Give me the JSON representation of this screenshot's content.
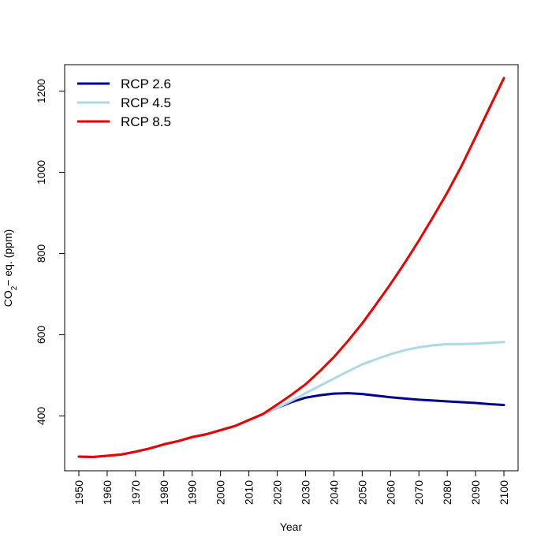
{
  "chart_data": {
    "type": "line",
    "title": "",
    "xlabel": "Year",
    "ylabel": {
      "prefix": "CO",
      "subscript": "2",
      "suffix": "− eq. (ppm)"
    },
    "xlim": [
      1945,
      2105
    ],
    "ylim": [
      265,
      1265
    ],
    "x_ticks": [
      1950,
      1960,
      1970,
      1980,
      1990,
      2000,
      2010,
      2020,
      2030,
      2040,
      2050,
      2060,
      2070,
      2080,
      2090,
      2100
    ],
    "y_ticks": [
      400,
      600,
      800,
      1000,
      1200
    ],
    "grid": false,
    "legend_position": "top-left",
    "series": [
      {
        "name": "RCP 2.6",
        "color": "#00008B",
        "x": [
          1950,
          1955,
          1960,
          1965,
          1970,
          1975,
          1980,
          1985,
          1990,
          1995,
          2000,
          2005,
          2010,
          2015,
          2020,
          2025,
          2030,
          2035,
          2040,
          2045,
          2050,
          2055,
          2060,
          2065,
          2070,
          2075,
          2080,
          2085,
          2090,
          2095,
          2100
        ],
        "values": [
          300,
          299,
          302,
          305,
          312,
          320,
          330,
          338,
          348,
          355,
          365,
          375,
          390,
          404,
          420,
          434,
          445,
          451,
          455,
          456,
          454,
          450,
          446,
          443,
          440,
          438,
          436,
          434,
          432,
          429,
          427
        ]
      },
      {
        "name": "RCP 4.5",
        "color": "#ADD8E6",
        "x": [
          1950,
          1955,
          1960,
          1965,
          1970,
          1975,
          1980,
          1985,
          1990,
          1995,
          2000,
          2005,
          2010,
          2015,
          2020,
          2025,
          2030,
          2035,
          2040,
          2045,
          2050,
          2055,
          2060,
          2065,
          2070,
          2075,
          2080,
          2085,
          2090,
          2095,
          2100
        ],
        "values": [
          300,
          299,
          302,
          305,
          312,
          320,
          330,
          338,
          348,
          355,
          365,
          375,
          390,
          404,
          420,
          437,
          456,
          474,
          492,
          510,
          527,
          540,
          552,
          562,
          569,
          574,
          577,
          577,
          578,
          580,
          582
        ]
      },
      {
        "name": "RCP 8.5",
        "color": "#EE0000",
        "x": [
          1950,
          1955,
          1960,
          1965,
          1970,
          1975,
          1980,
          1985,
          1990,
          1995,
          2000,
          2005,
          2010,
          2015,
          2020,
          2025,
          2030,
          2035,
          2040,
          2045,
          2050,
          2055,
          2060,
          2065,
          2070,
          2075,
          2080,
          2085,
          2090,
          2095,
          2100
        ],
        "values": [
          300,
          299,
          302,
          305,
          312,
          320,
          330,
          338,
          348,
          355,
          365,
          375,
          390,
          405,
          428,
          452,
          478,
          510,
          545,
          585,
          628,
          676,
          725,
          777,
          832,
          890,
          950,
          1015,
          1087,
          1160,
          1232
        ]
      }
    ]
  }
}
